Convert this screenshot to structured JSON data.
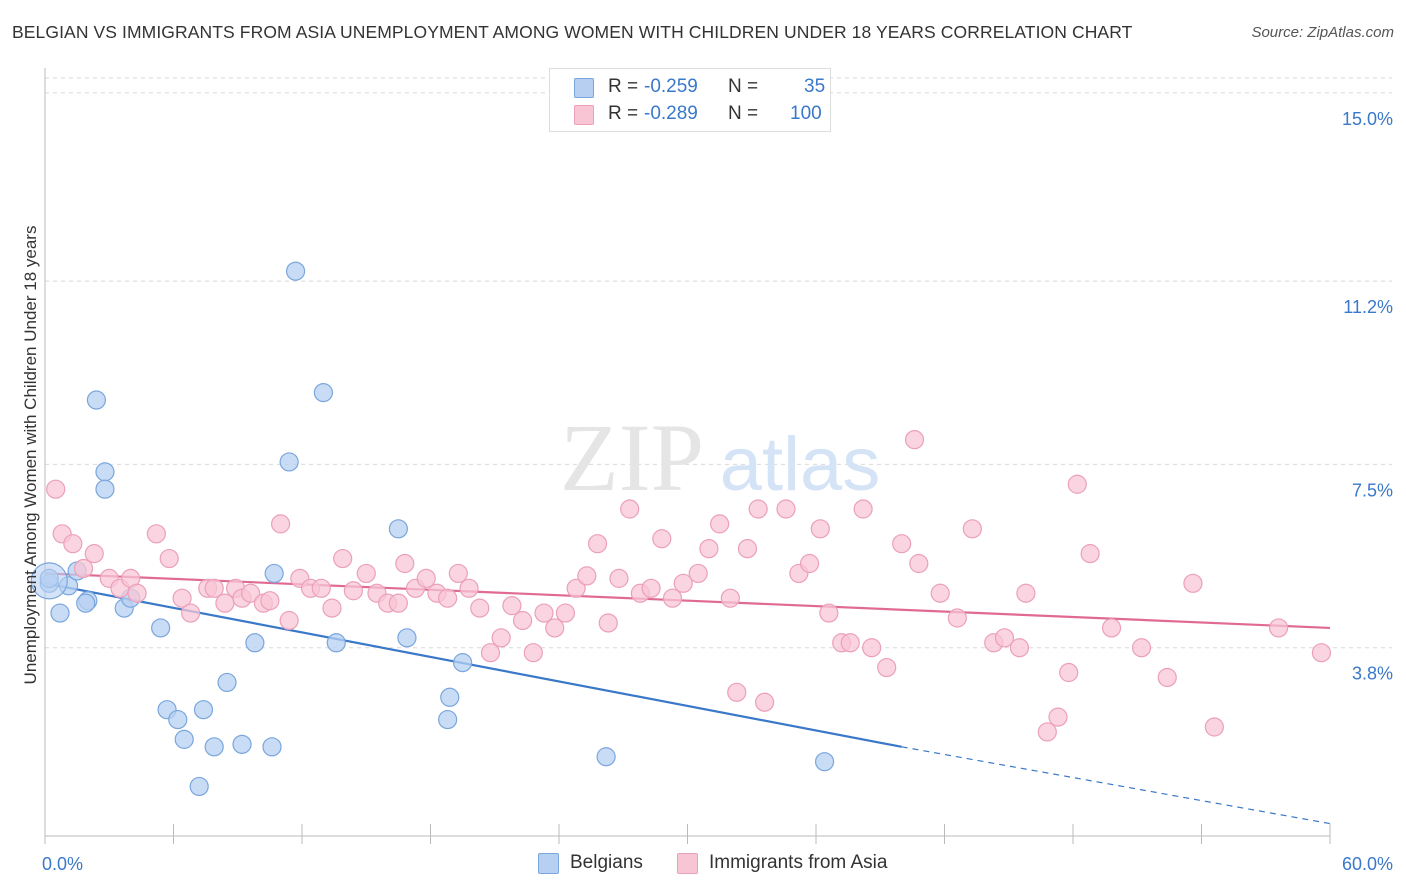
{
  "title": "BELGIAN VS IMMIGRANTS FROM ASIA UNEMPLOYMENT AMONG WOMEN WITH CHILDREN UNDER 18 YEARS CORRELATION CHART",
  "source": "Source: ZipAtlas.com",
  "watermark": {
    "zip": "ZIP",
    "atlas": "atlas"
  },
  "legend": {
    "rows": [
      {
        "r_label": "R =",
        "r_value": "-0.259",
        "n_label": "N =",
        "n_value": "35",
        "color": "#8ab4e8"
      },
      {
        "r_label": "R =",
        "r_value": "-0.289",
        "n_label": "N =",
        "n_value": "100",
        "color": "#f0a6be"
      }
    ]
  },
  "bottom_legend": [
    {
      "label": "Belgians",
      "color": "#8ab4e8"
    },
    {
      "label": "Immigrants from Asia",
      "color": "#f0a6be"
    }
  ],
  "chart_data": {
    "type": "scatter",
    "title": "BELGIAN VS IMMIGRANTS FROM ASIA UNEMPLOYMENT AMONG WOMEN WITH CHILDREN UNDER 18 YEARS CORRELATION CHART",
    "xlabel": "",
    "ylabel": "Unemployment Among Women with Children Under 18 years",
    "xlim": [
      0,
      60
    ],
    "ylim": [
      0,
      15.3
    ],
    "x_tick_labels": [
      "0.0%",
      "60.0%"
    ],
    "y_ticks": [
      3.8,
      7.5,
      11.2,
      15.0
    ],
    "y_tick_labels": [
      "3.8%",
      "7.5%",
      "11.2%",
      "15.0%"
    ],
    "grid": true,
    "legend_position": "top-center",
    "series": [
      {
        "name": "Belgians",
        "color": "#3a78c9",
        "fill": "#b7d0f2",
        "stroke": "#7aa6dc",
        "points": [
          [
            0.2,
            5.1
          ],
          [
            1.1,
            5.05
          ],
          [
            1.5,
            5.35
          ],
          [
            0.7,
            4.5
          ],
          [
            2.0,
            4.75
          ],
          [
            2.4,
            8.8
          ],
          [
            2.8,
            7.35
          ],
          [
            2.8,
            7.0
          ],
          [
            3.7,
            4.6
          ],
          [
            4.0,
            4.8
          ],
          [
            5.4,
            4.2
          ],
          [
            5.7,
            2.55
          ],
          [
            6.2,
            2.35
          ],
          [
            6.5,
            1.95
          ],
          [
            7.4,
            2.55
          ],
          [
            7.2,
            1.0
          ],
          [
            7.9,
            1.8
          ],
          [
            8.5,
            3.1
          ],
          [
            9.2,
            1.85
          ],
          [
            9.8,
            3.9
          ],
          [
            10.6,
            1.8
          ],
          [
            10.7,
            5.3
          ],
          [
            11.4,
            7.55
          ],
          [
            11.7,
            11.4
          ],
          [
            13.0,
            8.95
          ],
          [
            13.6,
            3.9
          ],
          [
            16.5,
            6.2
          ],
          [
            16.9,
            4.0
          ],
          [
            18.8,
            2.35
          ],
          [
            18.9,
            2.8
          ],
          [
            19.5,
            3.5
          ],
          [
            26.2,
            1.6
          ],
          [
            36.4,
            1.5
          ],
          [
            0.2,
            5.2
          ],
          [
            1.9,
            4.7
          ]
        ],
        "trend": {
          "x": [
            0,
            40
          ],
          "y": [
            5.1,
            1.8
          ],
          "dashed_to": [
            60,
            0.25
          ]
        }
      },
      {
        "name": "Immigrants from Asia",
        "color": "#e06a93",
        "fill": "#f8c5d5",
        "stroke": "#eba0b9",
        "points": [
          [
            0.5,
            7.0
          ],
          [
            0.8,
            6.1
          ],
          [
            1.3,
            5.9
          ],
          [
            1.8,
            5.4
          ],
          [
            2.3,
            5.7
          ],
          [
            3.0,
            5.2
          ],
          [
            3.5,
            5.0
          ],
          [
            4.0,
            5.2
          ],
          [
            4.3,
            4.9
          ],
          [
            5.2,
            6.1
          ],
          [
            5.8,
            5.6
          ],
          [
            6.4,
            4.8
          ],
          [
            6.8,
            4.5
          ],
          [
            7.6,
            5.0
          ],
          [
            7.9,
            5.0
          ],
          [
            8.4,
            4.7
          ],
          [
            8.9,
            5.0
          ],
          [
            9.2,
            4.8
          ],
          [
            9.6,
            4.9
          ],
          [
            10.2,
            4.7
          ],
          [
            10.5,
            4.75
          ],
          [
            11.0,
            6.3
          ],
          [
            11.4,
            4.35
          ],
          [
            11.9,
            5.2
          ],
          [
            12.4,
            5.0
          ],
          [
            12.9,
            5.0
          ],
          [
            13.4,
            4.6
          ],
          [
            13.9,
            5.6
          ],
          [
            14.4,
            4.95
          ],
          [
            15.0,
            5.3
          ],
          [
            15.5,
            4.9
          ],
          [
            16.0,
            4.7
          ],
          [
            16.5,
            4.7
          ],
          [
            16.8,
            5.5
          ],
          [
            17.3,
            5.0
          ],
          [
            17.8,
            5.2
          ],
          [
            18.3,
            4.9
          ],
          [
            18.8,
            4.8
          ],
          [
            19.3,
            5.3
          ],
          [
            19.8,
            5.0
          ],
          [
            20.3,
            4.6
          ],
          [
            20.8,
            3.7
          ],
          [
            21.3,
            4.0
          ],
          [
            21.8,
            4.65
          ],
          [
            22.3,
            4.35
          ],
          [
            22.8,
            3.7
          ],
          [
            23.3,
            4.5
          ],
          [
            23.8,
            4.2
          ],
          [
            24.3,
            4.5
          ],
          [
            24.8,
            5.0
          ],
          [
            25.3,
            5.25
          ],
          [
            25.8,
            5.9
          ],
          [
            26.3,
            4.3
          ],
          [
            26.8,
            5.2
          ],
          [
            27.3,
            6.6
          ],
          [
            27.8,
            4.9
          ],
          [
            28.3,
            5.0
          ],
          [
            28.8,
            6.0
          ],
          [
            29.3,
            4.8
          ],
          [
            29.8,
            5.1
          ],
          [
            30.5,
            5.3
          ],
          [
            31.0,
            5.8
          ],
          [
            31.5,
            6.3
          ],
          [
            32.0,
            4.8
          ],
          [
            32.3,
            2.9
          ],
          [
            32.8,
            5.8
          ],
          [
            33.3,
            6.6
          ],
          [
            33.6,
            2.7
          ],
          [
            34.6,
            6.6
          ],
          [
            35.2,
            5.3
          ],
          [
            35.7,
            5.5
          ],
          [
            36.2,
            6.2
          ],
          [
            36.6,
            4.5
          ],
          [
            37.2,
            3.9
          ],
          [
            37.6,
            3.9
          ],
          [
            38.2,
            6.6
          ],
          [
            38.6,
            3.8
          ],
          [
            39.3,
            3.4
          ],
          [
            40.0,
            5.9
          ],
          [
            40.6,
            8.0
          ],
          [
            40.8,
            5.5
          ],
          [
            41.8,
            4.9
          ],
          [
            42.6,
            4.4
          ],
          [
            43.3,
            6.2
          ],
          [
            44.3,
            3.9
          ],
          [
            44.8,
            4.0
          ],
          [
            45.8,
            4.9
          ],
          [
            46.8,
            2.1
          ],
          [
            47.3,
            2.4
          ],
          [
            47.8,
            3.3
          ],
          [
            48.2,
            7.1
          ],
          [
            48.8,
            5.7
          ],
          [
            49.8,
            4.2
          ],
          [
            51.2,
            3.8
          ],
          [
            52.4,
            3.2
          ],
          [
            53.6,
            5.1
          ],
          [
            54.6,
            2.2
          ],
          [
            57.6,
            4.2
          ],
          [
            59.6,
            3.7
          ],
          [
            45.5,
            3.8
          ]
        ],
        "trend": {
          "x": [
            0,
            60
          ],
          "y": [
            5.3,
            4.2
          ]
        }
      }
    ]
  }
}
